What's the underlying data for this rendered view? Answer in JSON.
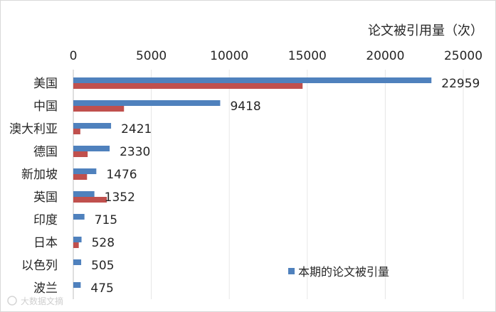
{
  "chart_data": {
    "type": "bar",
    "orientation": "horizontal",
    "axis_title": "论文被引用量（次）",
    "xlim": [
      0,
      25000
    ],
    "x_ticks": [
      "0",
      "5000",
      "10000",
      "15000",
      "20000",
      "25000"
    ],
    "x_tick_values": [
      0,
      5000,
      10000,
      15000,
      20000,
      25000
    ],
    "categories": [
      "美国",
      "中国",
      "澳大利亚",
      "德国",
      "新加坡",
      "英国",
      "印度",
      "日本",
      "以色列",
      "波兰"
    ],
    "series": [
      {
        "name": "本期的论文被引量",
        "color": "#4f81bd",
        "values": [
          22959,
          9418,
          2421,
          2330,
          1476,
          1352,
          715,
          528,
          505,
          475
        ],
        "data_labels": [
          "22959",
          "9418",
          "2421",
          "2330",
          "1476",
          "1352",
          "715",
          "528",
          "505",
          "475"
        ]
      },
      {
        "color": "#c0504d",
        "values": [
          14700,
          3250,
          450,
          920,
          880,
          2150,
          0,
          350,
          0,
          0
        ]
      }
    ],
    "legend": {
      "position": "bottom-right",
      "entries": [
        "本期的论文被引量"
      ]
    },
    "grid": true,
    "axis_position": "top"
  },
  "watermark_text": "大数据文摘"
}
